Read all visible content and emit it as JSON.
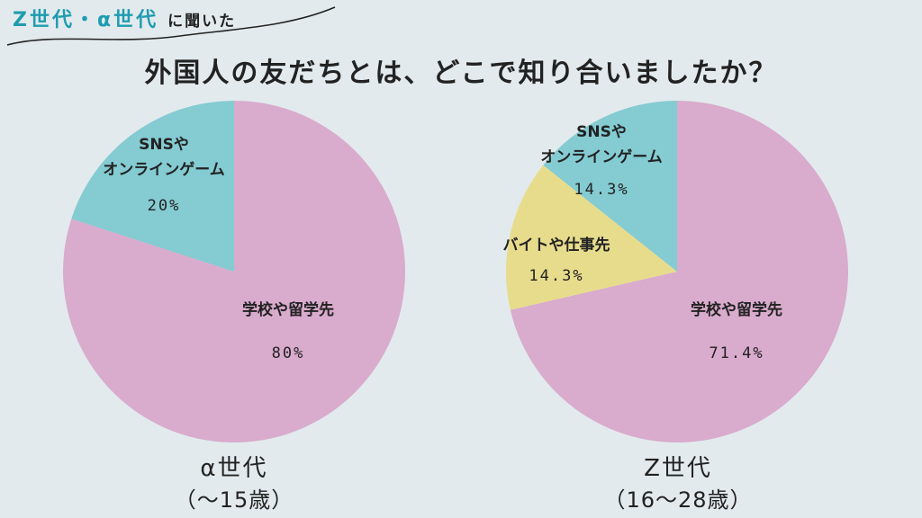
{
  "header": {
    "accent": "Z世代・α世代",
    "rest": "に聞いた",
    "title": "外国人の友だちとは、どこで知り合いましたか？"
  },
  "colors": {
    "school": "#d9abcd",
    "sns": "#84cbd2",
    "work": "#e7dc8c",
    "accent": "#1f9cb0",
    "background": "#e2eaed"
  },
  "chart_data": [
    {
      "type": "pie",
      "group": "α世代",
      "age": "（〜15歳）",
      "slices": [
        {
          "label": [
            "学校や留学先"
          ],
          "value": 80,
          "pct_label": "80%",
          "color": "#d9abcd"
        },
        {
          "label": [
            "SNSや",
            "オンラインゲーム"
          ],
          "value": 20,
          "pct_label": "20%",
          "color": "#84cbd2"
        }
      ]
    },
    {
      "type": "pie",
      "group": "Z世代",
      "age": "（16〜28歳）",
      "slices": [
        {
          "label": [
            "学校や留学先"
          ],
          "value": 71.4,
          "pct_label": "71.4%",
          "color": "#d9abcd"
        },
        {
          "label": [
            "バイトや仕事先"
          ],
          "value": 14.3,
          "pct_label": "14.3%",
          "color": "#e7dc8c"
        },
        {
          "label": [
            "SNSや",
            "オンラインゲーム"
          ],
          "value": 14.3,
          "pct_label": "14.3%",
          "color": "#84cbd2"
        }
      ]
    }
  ]
}
